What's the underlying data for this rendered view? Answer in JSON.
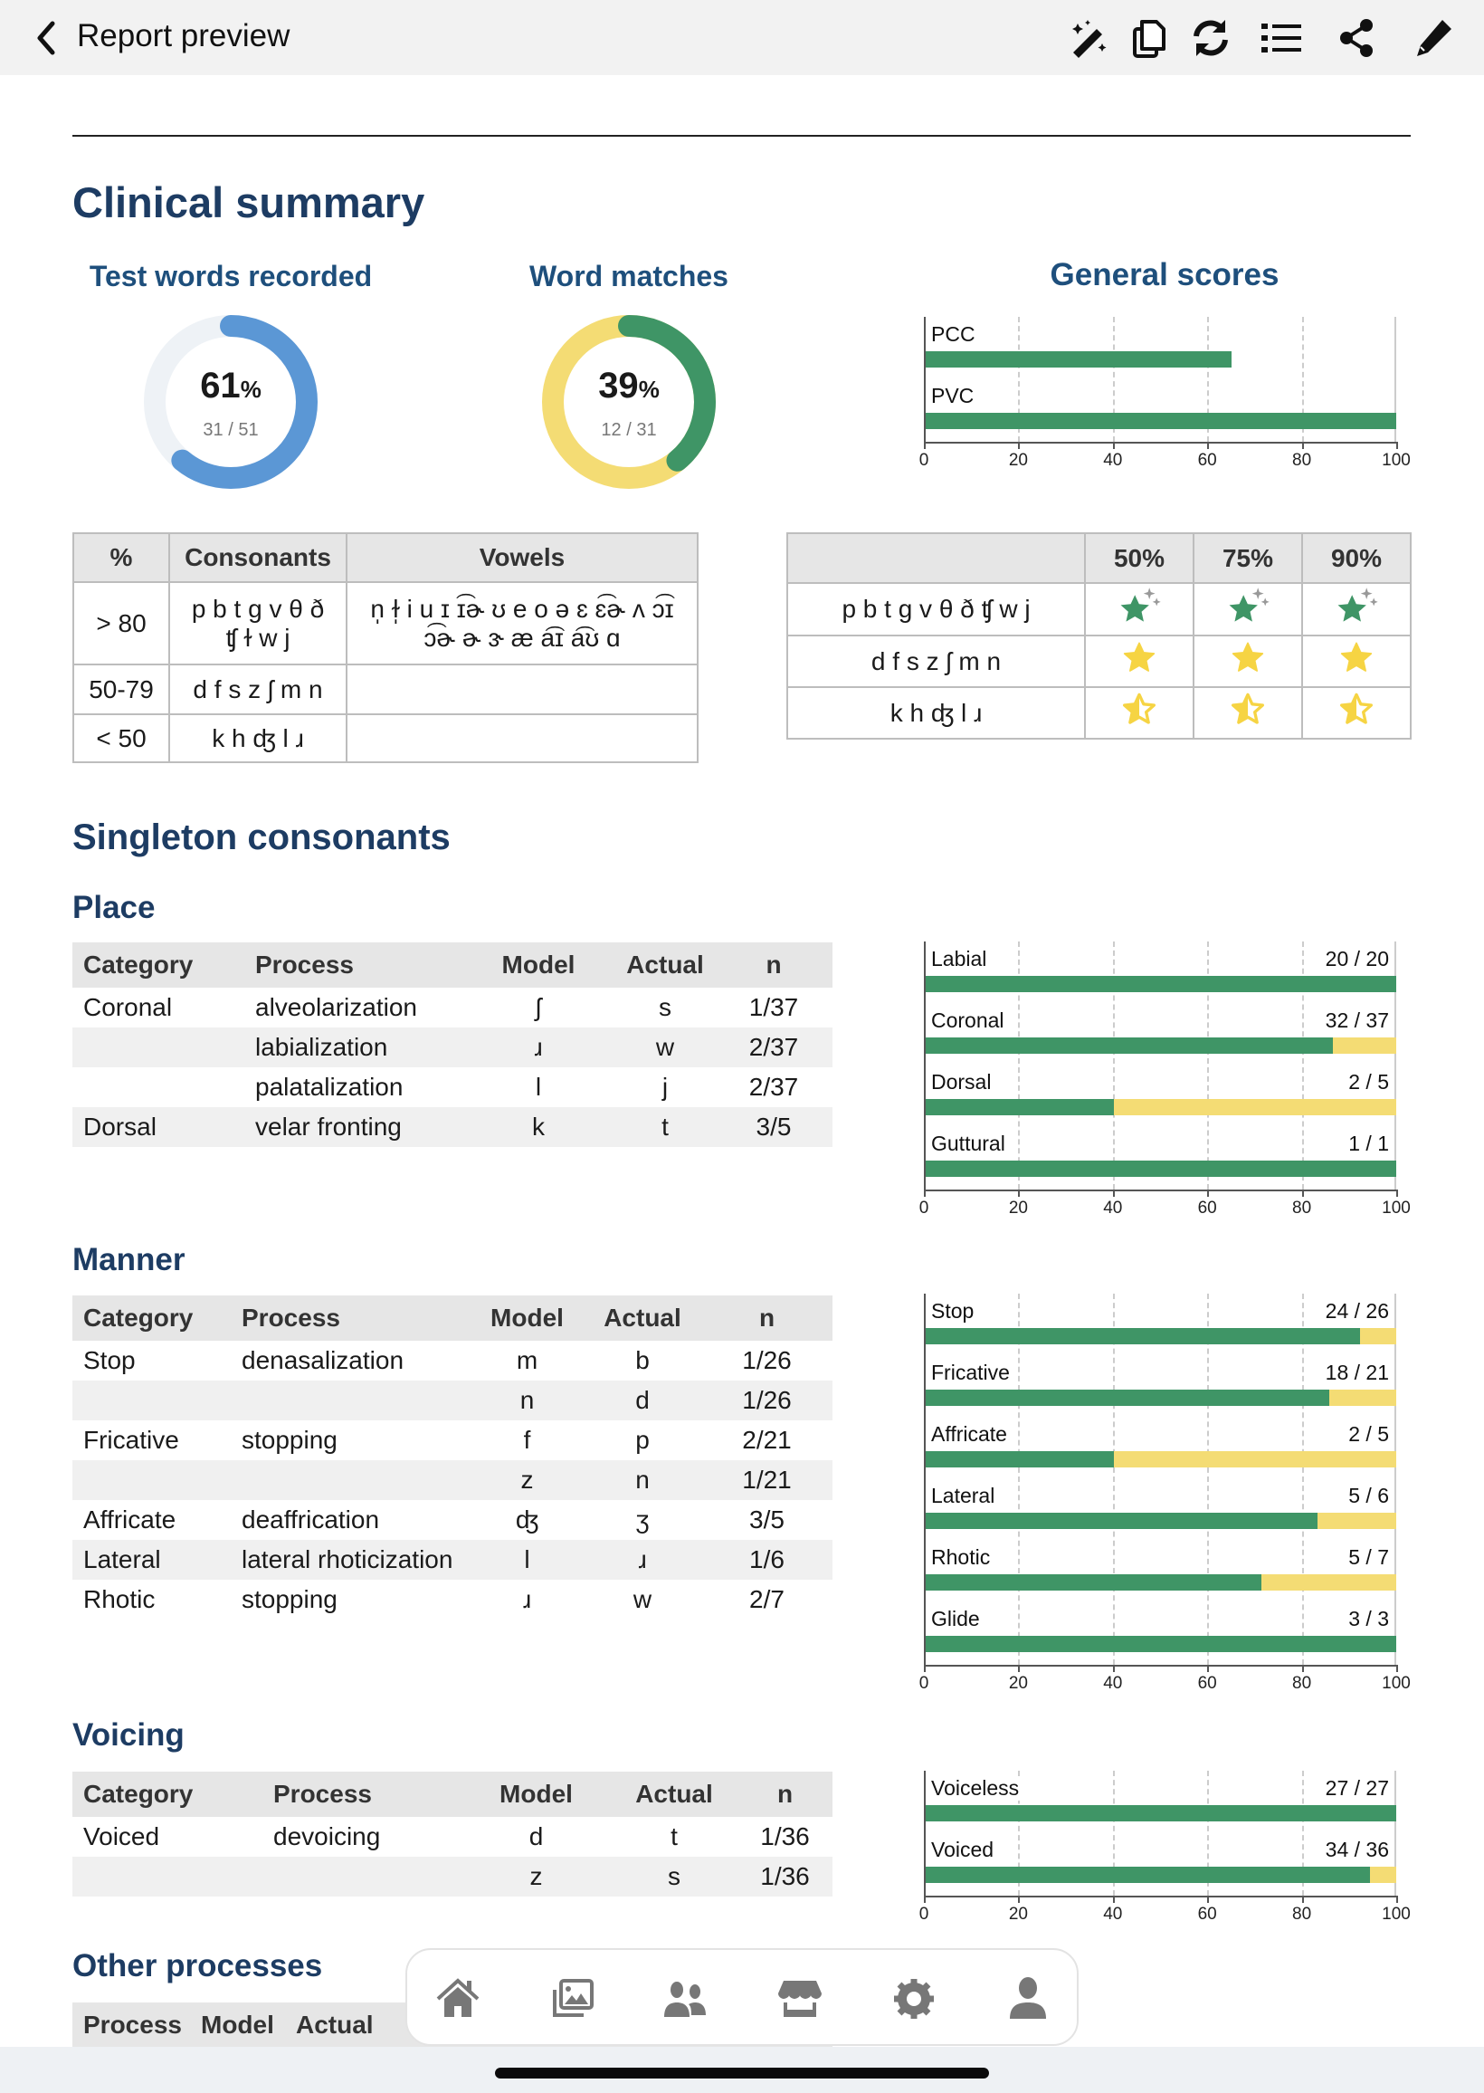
{
  "header": {
    "title": "Report preview",
    "icons": [
      "back-chevron",
      "magic-wand",
      "copy",
      "refresh",
      "list",
      "share",
      "pencil"
    ]
  },
  "summary": {
    "title": "Clinical summary",
    "recorded": {
      "label": "Test words recorded",
      "percent": 61,
      "percent_text": "61",
      "unit": "%",
      "fraction": "31 / 51",
      "color": "#5b97d5",
      "track": "#eef2f6"
    },
    "matches": {
      "label": "Word matches",
      "percent": 39,
      "percent_text": "39",
      "unit": "%",
      "fraction": "12 / 31",
      "color": "#3f9566",
      "track": "#f4dc74"
    },
    "general": {
      "label": "General scores",
      "bars": [
        {
          "label": "PCC",
          "value": 65
        },
        {
          "label": "PVC",
          "value": 100
        }
      ]
    }
  },
  "axis_ticks": [
    "0",
    "20",
    "40",
    "60",
    "80",
    "100"
  ],
  "colors": {
    "green": "#3f9566",
    "yellow": "#f4dc74",
    "heading": "#1d3c63"
  },
  "accuracy_table": {
    "headers": [
      "%",
      "Consonants",
      "Vowels"
    ],
    "rows": [
      {
        "range": "> 80",
        "consonants": "p b t g v θ ð ʧ ɫ w j",
        "vowels": "n̩ ɫ̩ i u ɪ ɪ͡ɚ ʊ e o ə ɛ ɛ͡ɚ ʌ ɔ͡ɪ ɔ͡ɚ ɚ ɝ æ a͡ɪ a͡ʊ ɑ"
      },
      {
        "range": "50-79",
        "consonants": "d f s z ʃ m n",
        "vowels": ""
      },
      {
        "range": "< 50",
        "consonants": "k h ʤ l ɹ",
        "vowels": ""
      }
    ]
  },
  "stars_table": {
    "headers": [
      "",
      "50%",
      "75%",
      "90%"
    ],
    "rows": [
      {
        "sounds": "p b t g v θ ð ʧ w j",
        "star": "sparkle-green"
      },
      {
        "sounds": "d f s z ʃ m n",
        "star": "full-yellow"
      },
      {
        "sounds": "k h ʤ l ɹ",
        "star": "half-yellow"
      }
    ]
  },
  "singleton": {
    "title": "Singleton consonants"
  },
  "place": {
    "title": "Place",
    "headers": [
      "Category",
      "Process",
      "Model",
      "Actual",
      "n"
    ],
    "rows": [
      [
        "Coronal",
        "alveolarization",
        "ʃ",
        "s",
        "1/37"
      ],
      [
        "",
        "labialization",
        "ɹ",
        "w",
        "2/37"
      ],
      [
        "",
        "palatalization",
        "l",
        "j",
        "2/37"
      ],
      [
        "Dorsal",
        "velar fronting",
        "k",
        "t",
        "3/5"
      ]
    ],
    "bars": [
      {
        "label": "Labial",
        "num": 20,
        "den": 20,
        "text": "20 / 20"
      },
      {
        "label": "Coronal",
        "num": 32,
        "den": 37,
        "text": "32 / 37"
      },
      {
        "label": "Dorsal",
        "num": 2,
        "den": 5,
        "text": "2 / 5"
      },
      {
        "label": "Guttural",
        "num": 1,
        "den": 1,
        "text": "1 / 1"
      }
    ]
  },
  "manner": {
    "title": "Manner",
    "headers": [
      "Category",
      "Process",
      "Model",
      "Actual",
      "n"
    ],
    "rows": [
      [
        "Stop",
        "denasalization",
        "m",
        "b",
        "1/26"
      ],
      [
        "",
        "",
        "n",
        "d",
        "1/26"
      ],
      [
        "Fricative",
        "stopping",
        "f",
        "p",
        "2/21"
      ],
      [
        "",
        "",
        "z",
        "n",
        "1/21"
      ],
      [
        "Affricate",
        "deaffrication",
        "ʤ",
        "ʒ",
        "3/5"
      ],
      [
        "Lateral",
        "lateral rhoticization",
        "l",
        "ɹ",
        "1/6"
      ],
      [
        "Rhotic",
        "stopping",
        "ɹ",
        "w",
        "2/7"
      ]
    ],
    "bars": [
      {
        "label": "Stop",
        "num": 24,
        "den": 26,
        "text": "24 / 26"
      },
      {
        "label": "Fricative",
        "num": 18,
        "den": 21,
        "text": "18 / 21"
      },
      {
        "label": "Affricate",
        "num": 2,
        "den": 5,
        "text": "2 / 5"
      },
      {
        "label": "Lateral",
        "num": 5,
        "den": 6,
        "text": "5 / 6"
      },
      {
        "label": "Rhotic",
        "num": 5,
        "den": 7,
        "text": "5 / 7"
      },
      {
        "label": "Glide",
        "num": 3,
        "den": 3,
        "text": "3 / 3"
      }
    ]
  },
  "voicing": {
    "title": "Voicing",
    "headers": [
      "Category",
      "Process",
      "Model",
      "Actual",
      "n"
    ],
    "rows": [
      [
        "Voiced",
        "devoicing",
        "d",
        "t",
        "1/36"
      ],
      [
        "",
        "",
        "z",
        "s",
        "1/36"
      ]
    ],
    "bars": [
      {
        "label": "Voiceless",
        "num": 27,
        "den": 27,
        "text": "27 / 27"
      },
      {
        "label": "Voiced",
        "num": 34,
        "den": 36,
        "text": "34 / 36"
      }
    ]
  },
  "other": {
    "title": "Other processes",
    "headers": [
      "Process",
      "Model",
      "Actual"
    ]
  },
  "nav": {
    "items": [
      "home",
      "gallery",
      "users",
      "store",
      "settings",
      "profile"
    ]
  }
}
